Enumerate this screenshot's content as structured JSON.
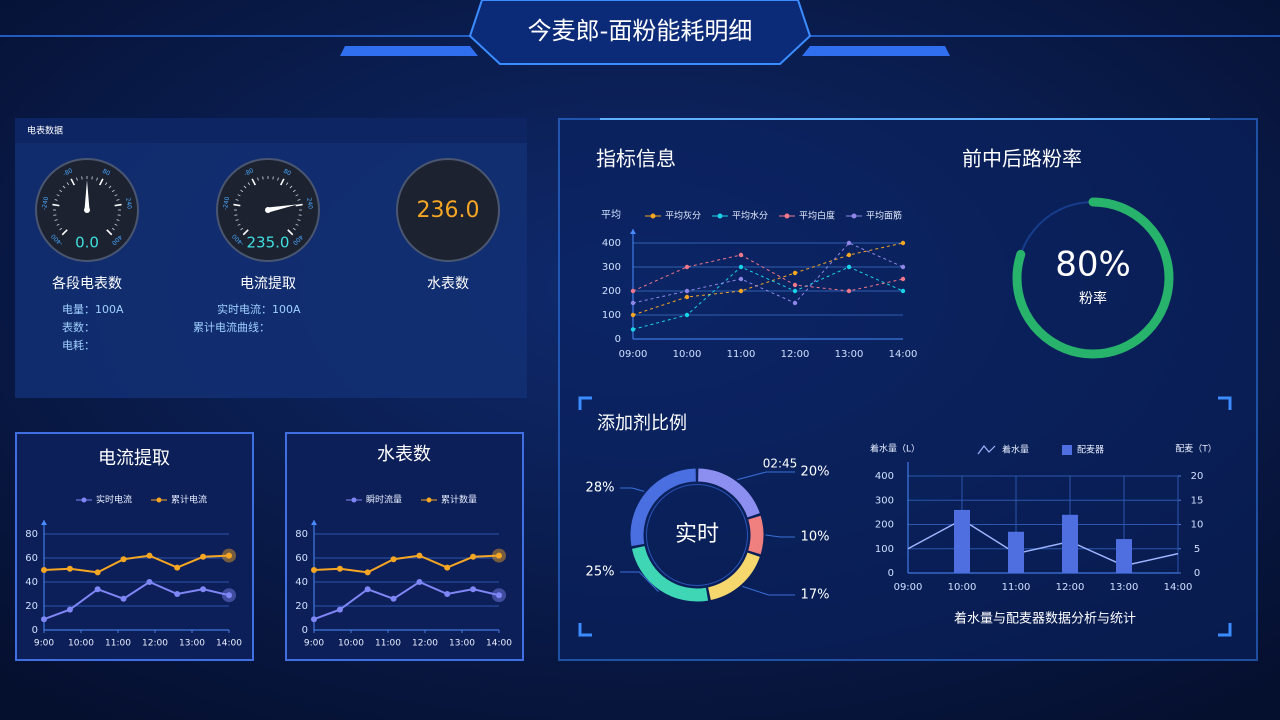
{
  "header": {
    "title": "今麦郎-面粉能耗明细"
  },
  "meter_panel": {
    "title": "电表数据",
    "gauges": [
      {
        "name": "各段电表数",
        "value": 0,
        "value_label": "0.0",
        "dial_ticks": [
          -400,
          -240,
          -80,
          80,
          240,
          400
        ],
        "lines": [
          "电量：100A",
          "表数：",
          "电耗："
        ]
      },
      {
        "name": "电流提取",
        "value": 235,
        "value_label": "235.0",
        "dial_ticks": [
          -400,
          -240,
          -80,
          80,
          240,
          400
        ],
        "lines": [
          "实时电流：100A",
          "累计电流曲线："
        ]
      },
      {
        "name": "水表数",
        "value_label": "236.0"
      }
    ]
  },
  "chart_data": [
    {
      "type": "line",
      "title": "指标信息",
      "y_label": "平均",
      "categories": [
        "09:00",
        "10:00",
        "11:00",
        "12:00",
        "13:00",
        "14:00"
      ],
      "series": [
        {
          "name": "平均灰分",
          "color": "#f5a623",
          "values": [
            100,
            175,
            200,
            275,
            350,
            400
          ]
        },
        {
          "name": "平均水分",
          "color": "#19d4e8",
          "values": [
            40,
            100,
            300,
            200,
            300,
            200
          ]
        },
        {
          "name": "平均白度",
          "color": "#f0788a",
          "values": [
            200,
            300,
            350,
            225,
            200,
            250
          ]
        },
        {
          "name": "平均面筋",
          "color": "#8f86e8",
          "values": [
            150,
            200,
            250,
            150,
            400,
            300
          ]
        }
      ],
      "ylim": [
        0,
        400
      ],
      "yticks": [
        0,
        100,
        200,
        300,
        400
      ],
      "grid": true
    },
    {
      "type": "ring",
      "title": "前中后路粉率",
      "value": 80,
      "value_label": "80%",
      "label": "粉率",
      "color": "#27b36b"
    },
    {
      "type": "donut",
      "title": "添加剂比例",
      "center_label": "实时",
      "annotation": "02:45",
      "values": [
        20,
        10,
        17,
        25,
        28
      ],
      "value_labels": [
        "20%",
        "10%",
        "17%",
        "25%",
        "28%"
      ],
      "colors": [
        "#8c8ff0",
        "#f08080",
        "#f5d76e",
        "#3ed6b5",
        "#4a6fe0"
      ]
    },
    {
      "type": "combo",
      "title": "着水量与配麦器数据分析与统计",
      "y_label": "着水量（L）",
      "y2_label": "配麦（T）",
      "categories": [
        "09:00",
        "10:00",
        "11:00",
        "12:00",
        "13:00",
        "14:00"
      ],
      "series": [
        {
          "name": "着水量",
          "type": "line",
          "color": "#9db4ff",
          "values": [
            100,
            220,
            80,
            130,
            30,
            80
          ]
        },
        {
          "name": "配麦器",
          "type": "bar",
          "axis": "y2",
          "color": "#4f6fe0",
          "values": [
            null,
            13,
            8.5,
            12,
            7,
            null
          ]
        }
      ],
      "ylim": [
        0,
        400
      ],
      "yticks": [
        0,
        100,
        200,
        300,
        400
      ],
      "y2lim": [
        0,
        20
      ],
      "y2ticks": [
        0,
        5,
        10,
        15,
        20
      ],
      "grid": true
    },
    {
      "type": "line",
      "title": "电流提取",
      "x": [
        9,
        9.7,
        10.45,
        11.15,
        11.85,
        12.6,
        13.3,
        14
      ],
      "xlim": [
        9,
        14
      ],
      "xticks": [
        {
          "value": 9,
          "label": "9:00"
        },
        {
          "value": 10,
          "label": "10:00"
        },
        {
          "value": 11,
          "label": "11:00"
        },
        {
          "value": 12,
          "label": "12:00"
        },
        {
          "value": 13,
          "label": "13:00"
        },
        {
          "value": 14,
          "label": "14:00"
        }
      ],
      "series": [
        {
          "name": "实时电流",
          "color": "#7f86f5",
          "values": [
            9,
            17,
            34,
            26,
            40,
            30,
            34,
            29
          ]
        },
        {
          "name": "累计电流",
          "color": "#f5a623",
          "values": [
            50,
            51,
            48,
            59,
            62,
            52,
            61,
            62
          ]
        }
      ],
      "ylim": [
        0,
        80
      ],
      "yticks": [
        0,
        20,
        40,
        60,
        80
      ],
      "grid": true
    },
    {
      "type": "line",
      "title": "水表数",
      "x": [
        9,
        9.7,
        10.45,
        11.15,
        11.85,
        12.6,
        13.3,
        14
      ],
      "xlim": [
        9,
        14
      ],
      "xticks": [
        {
          "value": 9,
          "label": "9:00"
        },
        {
          "value": 10,
          "label": "10:00"
        },
        {
          "value": 11,
          "label": "11:00"
        },
        {
          "value": 12,
          "label": "12:00"
        },
        {
          "value": 13,
          "label": "13:00"
        },
        {
          "value": 14,
          "label": "14:00"
        }
      ],
      "series": [
        {
          "name": "瞬时流量",
          "color": "#7f86f5",
          "values": [
            9,
            17,
            34,
            26,
            40,
            30,
            34,
            29
          ]
        },
        {
          "name": "累计数量",
          "color": "#f5a623",
          "values": [
            50,
            51,
            48,
            59,
            62,
            52,
            61,
            62
          ]
        }
      ],
      "ylim": [
        0,
        80
      ],
      "yticks": [
        0,
        20,
        40,
        60,
        80
      ],
      "grid": true
    }
  ]
}
